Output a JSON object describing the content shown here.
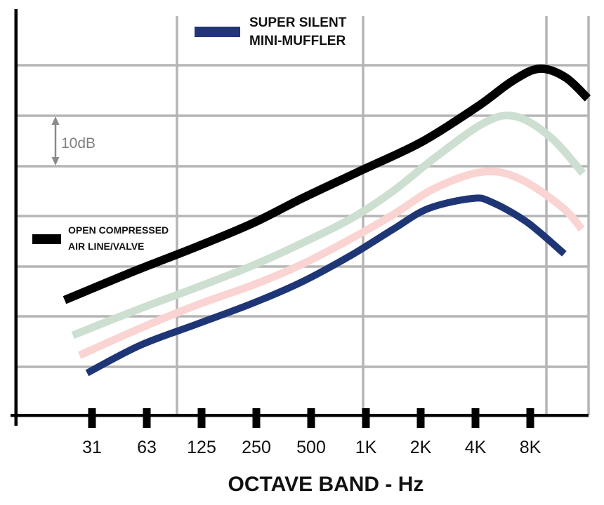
{
  "legend_top": {
    "line1": "SUPER SILENT",
    "line2": "MINI-MUFFLER",
    "swatch_color": "#223577"
  },
  "legend_left": {
    "line1": "OPEN COMPRESSED",
    "line2": "AIR LINE/VALVE",
    "swatch_color": "#000000"
  },
  "scale_indicator": {
    "label": "10dB",
    "meaning_db_per_division": 10
  },
  "colors": {
    "grid": "#b5b5b5",
    "axis": "#000000",
    "indicator_arrow": "#8a8a8a",
    "indicator_text": "#7f7f7f"
  },
  "chart_data": {
    "type": "line",
    "title": "",
    "xlabel": "OCTAVE BAND - Hz",
    "ylabel": "",
    "categories": [
      "31",
      "63",
      "125",
      "250",
      "500",
      "1K",
      "2K",
      "4K",
      "8K"
    ],
    "grid": true,
    "y_division_db": 10,
    "y_axis_numbers_shown": false,
    "legend_position": "top-center (muffler), left-middle (open line)",
    "series": [
      {
        "name": "OPEN COMPRESSED AIR LINE/VALVE",
        "color": "#000000",
        "points_band_db": [
          [
            -0.5,
            22.9
          ],
          [
            0.76,
            28.6
          ],
          [
            1.91,
            33.5
          ],
          [
            2.94,
            38.2
          ],
          [
            3.83,
            43.1
          ],
          [
            4.86,
            48.4
          ],
          [
            6.01,
            54.3
          ],
          [
            7.04,
            61.4
          ],
          [
            7.68,
            66.5
          ],
          [
            8.17,
            68.9
          ],
          [
            8.64,
            67.2
          ],
          [
            9.05,
            63.0
          ]
        ]
      },
      {
        "name": "",
        "color": "#cddfd0",
        "points_band_db": [
          [
            -0.35,
            15.9
          ],
          [
            0.88,
            21.2
          ],
          [
            1.91,
            25.4
          ],
          [
            2.94,
            29.8
          ],
          [
            3.83,
            34.2
          ],
          [
            4.73,
            39.1
          ],
          [
            5.5,
            44.6
          ],
          [
            6.27,
            51.3
          ],
          [
            7.17,
            58.2
          ],
          [
            7.74,
            59.4
          ],
          [
            8.38,
            55.2
          ],
          [
            8.96,
            48.1
          ]
        ]
      },
      {
        "name": "",
        "color": "#fad4d2",
        "points_band_db": [
          [
            -0.23,
            11.9
          ],
          [
            0.88,
            17.3
          ],
          [
            1.91,
            21.9
          ],
          [
            2.94,
            25.9
          ],
          [
            3.83,
            30.0
          ],
          [
            4.73,
            35.1
          ],
          [
            5.5,
            39.9
          ],
          [
            6.27,
            45.2
          ],
          [
            7.14,
            48.4
          ],
          [
            7.81,
            47.0
          ],
          [
            8.58,
            41.4
          ],
          [
            8.94,
            37.0
          ]
        ]
      },
      {
        "name": "SUPER SILENT MINI-MUFFLER",
        "color": "#1e3576",
        "points_band_db": [
          [
            -0.09,
            8.4
          ],
          [
            0.88,
            13.9
          ],
          [
            1.91,
            18.1
          ],
          [
            2.94,
            22.3
          ],
          [
            3.83,
            26.5
          ],
          [
            4.73,
            31.8
          ],
          [
            5.5,
            37.0
          ],
          [
            6.14,
            41.1
          ],
          [
            6.94,
            43.1
          ],
          [
            7.29,
            42.4
          ],
          [
            7.94,
            38.4
          ],
          [
            8.62,
            32.1
          ]
        ]
      }
    ]
  }
}
